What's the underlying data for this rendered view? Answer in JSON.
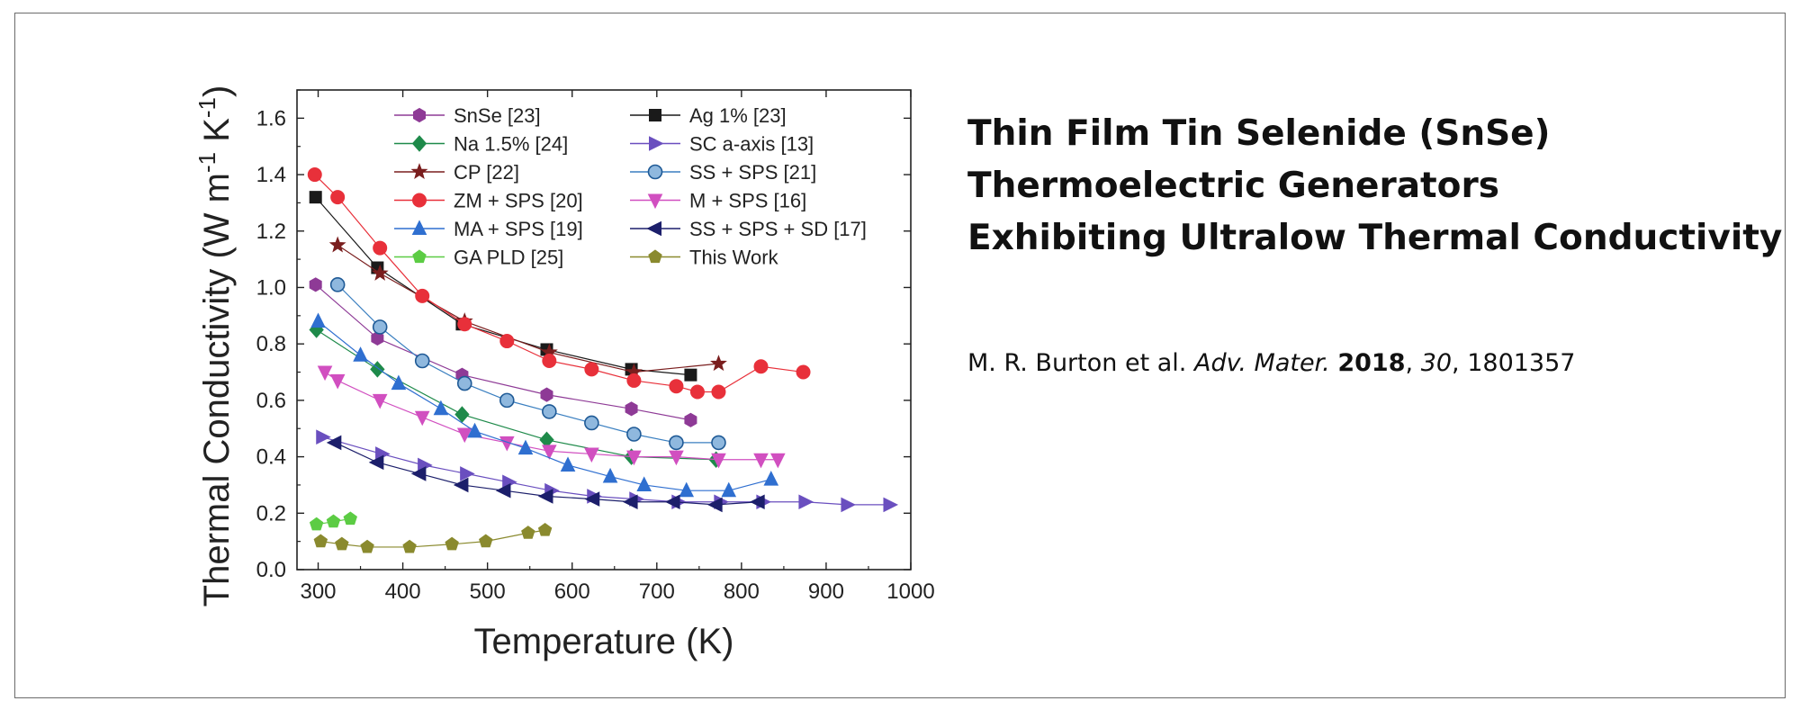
{
  "title_lines": [
    "Thin Film Tin Selenide (SnSe)",
    "Thermoelectric Generators",
    "Exhibiting Ultralow Thermal Conductivity"
  ],
  "citation": {
    "authors": "M. R. Burton et al.",
    "journal": "Adv. Mater.",
    "year": "2018",
    "volume": "30",
    "article": "1801357",
    "sep1": ", ",
    "sep2": ", "
  },
  "chart_data": {
    "type": "line",
    "title": "",
    "xlabel": "Temperature (K)",
    "ylabel": "Thermal Conductivity (W m-1 K-1)",
    "ylabel_parts": [
      "Thermal Conductivity (W m",
      "-1",
      " K",
      "-1",
      ")"
    ],
    "xlim": [
      275,
      1000
    ],
    "ylim": [
      0,
      1.7
    ],
    "xticks": [
      300,
      400,
      500,
      600,
      700,
      800,
      900,
      1000
    ],
    "yticks": [
      0.0,
      0.2,
      0.4,
      0.6,
      0.8,
      1.0,
      1.2,
      1.4,
      1.6
    ],
    "xtick_labels": [
      "300",
      "400",
      "500",
      "600",
      "700",
      "800",
      "900",
      "1000"
    ],
    "ytick_labels": [
      "0.0",
      "0.2",
      "0.4",
      "0.6",
      "0.8",
      "1.0",
      "1.2",
      "1.4",
      "1.6"
    ],
    "grid": false,
    "legend_position": "top",
    "series": [
      {
        "name": "SnSe [23]",
        "color": "#8e3a96",
        "marker": "hexagon",
        "x": [
          297,
          370,
          470,
          570,
          670,
          740
        ],
        "y": [
          1.01,
          0.82,
          0.69,
          0.62,
          0.57,
          0.53
        ]
      },
      {
        "name": "Ag 1% [23]",
        "color": "#1a1a1a",
        "marker": "square",
        "x": [
          297,
          370,
          470,
          570,
          670,
          740
        ],
        "y": [
          1.32,
          1.07,
          0.87,
          0.78,
          0.71,
          0.69
        ]
      },
      {
        "name": "Na 1.5% [24]",
        "color": "#1e8a4a",
        "marker": "diamond",
        "x": [
          298,
          370,
          470,
          570,
          670,
          770
        ],
        "y": [
          0.85,
          0.71,
          0.55,
          0.46,
          0.4,
          0.39
        ]
      },
      {
        "name": "SC a-axis [13]",
        "color": "#6a4fbf",
        "marker": "triangle-right",
        "x": [
          305,
          375,
          425,
          475,
          525,
          575,
          625,
          675,
          725,
          775,
          825,
          875,
          925,
          975
        ],
        "y": [
          0.47,
          0.41,
          0.37,
          0.34,
          0.31,
          0.28,
          0.26,
          0.25,
          0.24,
          0.24,
          0.24,
          0.24,
          0.23,
          0.23
        ]
      },
      {
        "name": "CP [22]",
        "color": "#7a1e1e",
        "marker": "star",
        "x": [
          323,
          373,
          473,
          573,
          673,
          773
        ],
        "y": [
          1.15,
          1.05,
          0.88,
          0.77,
          0.7,
          0.73
        ]
      },
      {
        "name": "SS + SPS [21]",
        "color": "#3a7fc0",
        "marker": "circle-shaded",
        "x": [
          323,
          373,
          423,
          473,
          523,
          573,
          623,
          673,
          723,
          773
        ],
        "y": [
          1.01,
          0.86,
          0.74,
          0.66,
          0.6,
          0.56,
          0.52,
          0.48,
          0.45,
          0.45
        ]
      },
      {
        "name": "ZM + SPS [20]",
        "color": "#e8303a",
        "marker": "circle",
        "x": [
          296,
          323,
          373,
          423,
          473,
          523,
          573,
          623,
          673,
          723,
          748,
          773,
          823,
          873
        ],
        "y": [
          1.4,
          1.32,
          1.14,
          0.97,
          0.87,
          0.81,
          0.74,
          0.71,
          0.67,
          0.65,
          0.63,
          0.63,
          0.72,
          0.7
        ]
      },
      {
        "name": "M + SPS [16]",
        "color": "#d14fc0",
        "marker": "triangle-down",
        "x": [
          308,
          323,
          373,
          423,
          473,
          523,
          573,
          623,
          673,
          723,
          773,
          823,
          843
        ],
        "y": [
          0.7,
          0.67,
          0.6,
          0.54,
          0.48,
          0.45,
          0.42,
          0.41,
          0.4,
          0.4,
          0.39,
          0.39,
          0.39
        ]
      },
      {
        "name": "MA + SPS [19]",
        "color": "#2f6fd0",
        "marker": "triangle-up",
        "x": [
          300,
          350,
          395,
          445,
          485,
          545,
          595,
          645,
          685,
          735,
          785,
          835
        ],
        "y": [
          0.88,
          0.76,
          0.66,
          0.57,
          0.49,
          0.43,
          0.37,
          0.33,
          0.3,
          0.28,
          0.28,
          0.32
        ]
      },
      {
        "name": "SS + SPS + SD [17]",
        "color": "#1c1f6b",
        "marker": "triangle-left",
        "x": [
          320,
          370,
          420,
          470,
          520,
          570,
          625,
          670,
          720,
          770,
          820
        ],
        "y": [
          0.45,
          0.38,
          0.34,
          0.3,
          0.28,
          0.26,
          0.25,
          0.24,
          0.24,
          0.23,
          0.24
        ]
      },
      {
        "name": "GA PLD [25]",
        "color": "#5ccc44",
        "marker": "pentagon",
        "x": [
          298,
          318,
          338
        ],
        "y": [
          0.16,
          0.17,
          0.18
        ]
      },
      {
        "name": "This Work",
        "color": "#8a8a2e",
        "marker": "pentagon",
        "x": [
          303,
          328,
          358,
          408,
          458,
          498,
          548,
          568
        ],
        "y": [
          0.1,
          0.09,
          0.08,
          0.08,
          0.09,
          0.1,
          0.13,
          0.14
        ]
      }
    ]
  }
}
